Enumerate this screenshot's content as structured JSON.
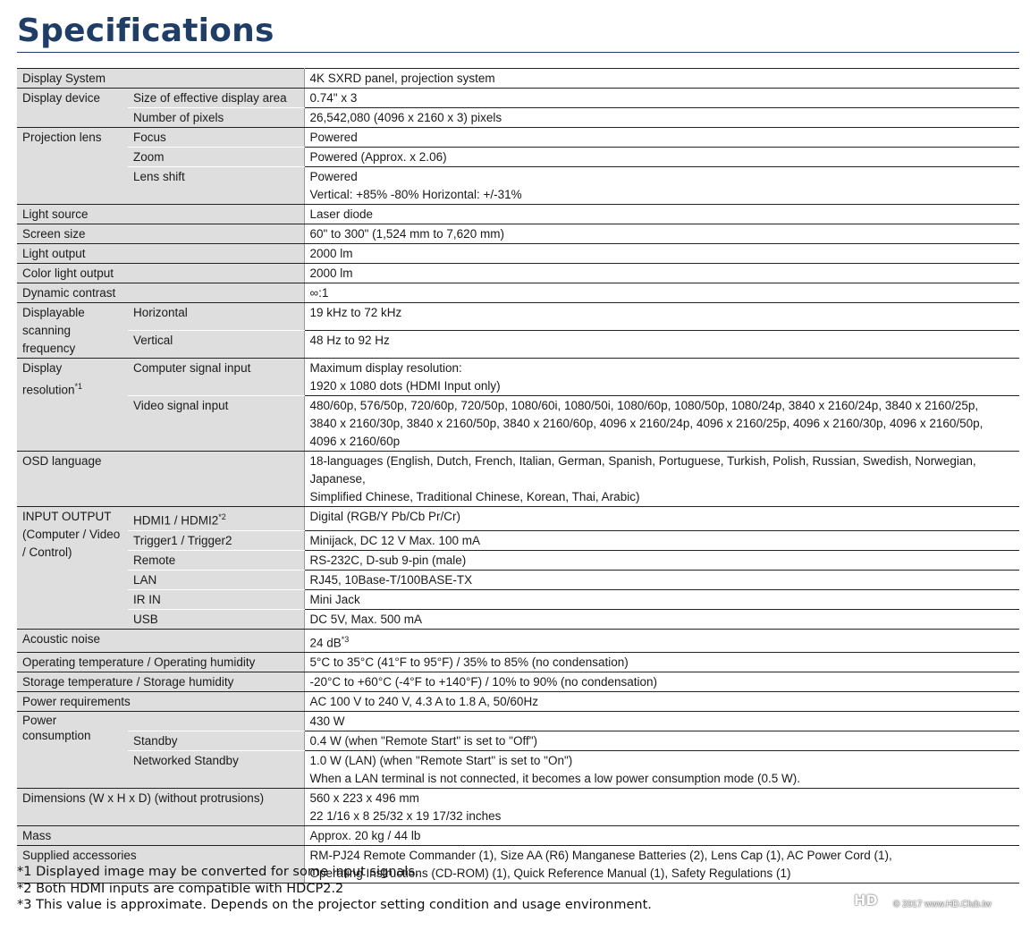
{
  "title": "Specifications",
  "rows": {
    "display_system": {
      "label": "Display System",
      "value": "4K SXRD panel, projection system"
    },
    "display_device": {
      "label": "Display device",
      "size": {
        "label": "Size of effective display area",
        "value": "0.74\" x 3"
      },
      "pixels": {
        "label": "Number of pixels",
        "value": "26,542,080 (4096 x 2160 x 3) pixels"
      }
    },
    "projection_lens": {
      "label": "Projection lens",
      "focus": {
        "label": "Focus",
        "value": "Powered"
      },
      "zoom": {
        "label": "Zoom",
        "value": "Powered (Approx. x 2.06)"
      },
      "shift": {
        "label": "Lens shift",
        "value1": "Powered",
        "value2": "Vertical: +85% -80% Horizontal: +/-31%"
      }
    },
    "light_source": {
      "label": "Light source",
      "value": "Laser diode"
    },
    "screen_size": {
      "label": "Screen size",
      "value": "60\" to 300\" (1,524 mm to 7,620 mm)"
    },
    "light_output": {
      "label": "Light output",
      "value": "2000 lm"
    },
    "color_light_output": {
      "label": "Color light output",
      "value": "2000 lm"
    },
    "dynamic_contrast": {
      "label": "Dynamic contrast",
      "value": "∞:1"
    },
    "scanning": {
      "label1": "Displayable",
      "label2": "scanning",
      "label3": "frequency",
      "horizontal": {
        "label": "Horizontal",
        "value": "19 kHz to 72 kHz"
      },
      "vertical": {
        "label": "Vertical",
        "value": "48 Hz to 92 Hz"
      }
    },
    "display_resolution": {
      "label1": "Display",
      "label2": "resolution",
      "label2_sup": "*1",
      "computer": {
        "label": "Computer signal input",
        "value1": "Maximum display resolution:",
        "value2": "1920 x 1080 dots (HDMI Input only)"
      },
      "video": {
        "label": "Video signal input",
        "value1": "480/60p, 576/50p, 720/60p, 720/50p, 1080/60i, 1080/50i, 1080/60p, 1080/50p, 1080/24p, 3840 x 2160/24p, 3840 x 2160/25p,",
        "value2": "3840 x 2160/30p, 3840 x 2160/50p, 3840 x 2160/60p, 4096 x 2160/24p, 4096 x 2160/25p, 4096 x 2160/30p, 4096 x 2160/50p,",
        "value3": "4096 x 2160/60p"
      }
    },
    "osd_language": {
      "label": "OSD language",
      "value1": "18-languages (English, Dutch, French, Italian, German, Spanish, Portuguese, Turkish, Polish, Russian, Swedish, Norwegian, Japanese,",
      "value2": "Simplified Chinese, Traditional Chinese, Korean, Thai, Arabic)"
    },
    "input_output": {
      "label1": "INPUT OUTPUT",
      "label2": "(Computer / Video",
      "label3": "/ Control)",
      "hdmi": {
        "label": "HDMI1 / HDMI2",
        "label_sup": "*2",
        "value": "Digital (RGB/Y Pb/Cb Pr/Cr)"
      },
      "trigger": {
        "label": "Trigger1 / Trigger2",
        "value": "Minijack, DC 12 V Max. 100 mA"
      },
      "remote": {
        "label": "Remote",
        "value": "RS-232C, D-sub 9-pin (male)"
      },
      "lan": {
        "label": "LAN",
        "value": "RJ45, 10Base-T/100BASE-TX"
      },
      "irin": {
        "label": "IR IN",
        "value": "Mini Jack"
      },
      "usb": {
        "label": "USB",
        "value": "DC 5V, Max. 500 mA"
      }
    },
    "acoustic_noise": {
      "label": "Acoustic noise",
      "value": "24 dB",
      "value_sup": "*3"
    },
    "operating_temp": {
      "label": "Operating temperature / Operating humidity",
      "value": "5°C to 35°C (41°F to 95°F) / 35% to 85% (no condensation)"
    },
    "storage_temp": {
      "label": "Storage temperature / Storage humidity",
      "value": "-20°C to +60°C (-4°F to +140°F) / 10% to 90% (no condensation)"
    },
    "power_requirements": {
      "label": "Power requirements",
      "value": "AC 100 V to 240 V, 4.3 A to 1.8 A, 50/60Hz"
    },
    "power_consumption": {
      "label1": "Power",
      "label2": "consumption",
      "main": {
        "value": "430 W"
      },
      "standby": {
        "label": "Standby",
        "value": "0.4 W (when \"Remote Start\" is set to \"Off\")"
      },
      "networked": {
        "label": "Networked Standby",
        "value1": "1.0 W (LAN) (when \"Remote Start\" is set to \"On\")",
        "value2": "When a LAN terminal is not connected, it becomes a low power consumption mode (0.5 W)."
      }
    },
    "dimensions": {
      "label": "Dimensions (W x H x D) (without protrusions)",
      "value1": "560 x 223 x 496 mm",
      "value2": "22 1/16 x 8 25/32 x 19 17/32 inches"
    },
    "mass": {
      "label": "Mass",
      "value": "Approx. 20 kg / 44 lb"
    },
    "accessories": {
      "label": "Supplied accessories",
      "value1": "RM-PJ24 Remote Commander (1), Size AA (R6) Manganese Batteries (2), Lens Cap (1), AC Power Cord (1),",
      "value2": "Operating Instructions (CD-ROM) (1), Quick Reference Manual (1), Safety Regulations (1)"
    }
  },
  "footnotes": [
    "*1 Displayed image may be converted for some input signals.",
    "*2 Both HDMI inputs are compatible with HDCP2.2",
    "*3 This value is approximate. Depends on the projector setting condition and usage environment."
  ],
  "watermark": {
    "logo": "HD",
    "text": "© 2017 www.HD.Club.tw"
  }
}
